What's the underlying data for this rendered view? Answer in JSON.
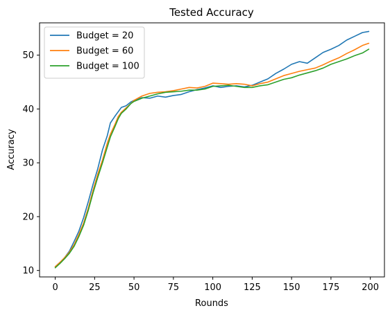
{
  "chart_data": {
    "type": "line",
    "title": "Tested Accuracy",
    "xlabel": "Rounds",
    "ylabel": "Accuracy",
    "xlim": [
      -9.95,
      208.95
    ],
    "ylim": [
      8.8,
      56.0
    ],
    "xticks": [
      0,
      25,
      50,
      75,
      100,
      125,
      150,
      175,
      200
    ],
    "yticks": [
      10,
      20,
      30,
      40,
      50
    ],
    "grid": false,
    "legend_position": "top-left",
    "series": [
      {
        "name": "Budget = 20",
        "color": "#1f77b4",
        "points": [
          [
            0,
            10.7
          ],
          [
            3,
            11.5
          ],
          [
            6,
            12.4
          ],
          [
            9,
            13.6
          ],
          [
            12,
            15.4
          ],
          [
            15,
            17.3
          ],
          [
            18,
            19.8
          ],
          [
            21,
            22.8
          ],
          [
            24,
            26.0
          ],
          [
            27,
            28.9
          ],
          [
            30,
            32.4
          ],
          [
            33,
            35.0
          ],
          [
            35,
            37.4
          ],
          [
            38,
            38.7
          ],
          [
            40,
            39.5
          ],
          [
            42,
            40.3
          ],
          [
            45,
            40.6
          ],
          [
            48,
            41.3
          ],
          [
            50,
            41.6
          ],
          [
            55,
            42.1
          ],
          [
            60,
            42.0
          ],
          [
            65,
            42.4
          ],
          [
            70,
            42.2
          ],
          [
            75,
            42.5
          ],
          [
            80,
            42.7
          ],
          [
            85,
            43.2
          ],
          [
            90,
            43.6
          ],
          [
            95,
            43.9
          ],
          [
            100,
            44.3
          ],
          [
            105,
            44.0
          ],
          [
            110,
            44.2
          ],
          [
            115,
            44.3
          ],
          [
            120,
            44.1
          ],
          [
            125,
            44.4
          ],
          [
            130,
            45.0
          ],
          [
            135,
            45.6
          ],
          [
            140,
            46.6
          ],
          [
            145,
            47.4
          ],
          [
            150,
            48.3
          ],
          [
            155,
            48.8
          ],
          [
            160,
            48.5
          ],
          [
            165,
            49.5
          ],
          [
            170,
            50.5
          ],
          [
            175,
            51.1
          ],
          [
            180,
            51.8
          ],
          [
            185,
            52.8
          ],
          [
            190,
            53.5
          ],
          [
            195,
            54.2
          ],
          [
            199,
            54.4
          ]
        ]
      },
      {
        "name": "Budget = 60",
        "color": "#ff7f0e",
        "points": [
          [
            0,
            10.7
          ],
          [
            3,
            11.5
          ],
          [
            6,
            12.4
          ],
          [
            9,
            13.4
          ],
          [
            12,
            14.8
          ],
          [
            15,
            16.7
          ],
          [
            18,
            18.8
          ],
          [
            21,
            21.6
          ],
          [
            24,
            24.9
          ],
          [
            27,
            27.9
          ],
          [
            30,
            30.5
          ],
          [
            33,
            33.6
          ],
          [
            35,
            35.3
          ],
          [
            38,
            37.2
          ],
          [
            40,
            38.6
          ],
          [
            42,
            39.4
          ],
          [
            45,
            40.2
          ],
          [
            48,
            41.0
          ],
          [
            50,
            41.6
          ],
          [
            55,
            42.4
          ],
          [
            60,
            42.9
          ],
          [
            65,
            43.1
          ],
          [
            70,
            43.2
          ],
          [
            75,
            43.4
          ],
          [
            80,
            43.7
          ],
          [
            85,
            44.0
          ],
          [
            90,
            43.9
          ],
          [
            95,
            44.2
          ],
          [
            100,
            44.8
          ],
          [
            105,
            44.7
          ],
          [
            110,
            44.6
          ],
          [
            115,
            44.7
          ],
          [
            120,
            44.6
          ],
          [
            125,
            44.3
          ],
          [
            130,
            44.7
          ],
          [
            135,
            45.0
          ],
          [
            140,
            45.6
          ],
          [
            145,
            46.2
          ],
          [
            150,
            46.6
          ],
          [
            155,
            47.0
          ],
          [
            160,
            47.3
          ],
          [
            165,
            47.6
          ],
          [
            170,
            48.2
          ],
          [
            175,
            48.9
          ],
          [
            180,
            49.5
          ],
          [
            185,
            50.3
          ],
          [
            190,
            51.0
          ],
          [
            195,
            51.8
          ],
          [
            199,
            52.2
          ]
        ]
      },
      {
        "name": "Budget = 100",
        "color": "#2ca02c",
        "points": [
          [
            0,
            10.5
          ],
          [
            3,
            11.3
          ],
          [
            6,
            12.2
          ],
          [
            9,
            13.2
          ],
          [
            12,
            14.5
          ],
          [
            15,
            16.3
          ],
          [
            18,
            18.4
          ],
          [
            21,
            21.2
          ],
          [
            24,
            24.4
          ],
          [
            27,
            27.3
          ],
          [
            30,
            30.0
          ],
          [
            33,
            32.9
          ],
          [
            35,
            34.8
          ],
          [
            38,
            36.8
          ],
          [
            40,
            38.2
          ],
          [
            42,
            39.2
          ],
          [
            45,
            40.0
          ],
          [
            48,
            41.0
          ],
          [
            50,
            41.4
          ],
          [
            55,
            42.0
          ],
          [
            60,
            42.4
          ],
          [
            65,
            42.8
          ],
          [
            70,
            43.1
          ],
          [
            75,
            43.2
          ],
          [
            80,
            43.3
          ],
          [
            85,
            43.5
          ],
          [
            90,
            43.5
          ],
          [
            95,
            43.7
          ],
          [
            100,
            44.2
          ],
          [
            105,
            44.3
          ],
          [
            110,
            44.4
          ],
          [
            115,
            44.2
          ],
          [
            120,
            44.0
          ],
          [
            125,
            44.0
          ],
          [
            130,
            44.3
          ],
          [
            135,
            44.5
          ],
          [
            140,
            45.0
          ],
          [
            145,
            45.5
          ],
          [
            150,
            45.8
          ],
          [
            155,
            46.3
          ],
          [
            160,
            46.7
          ],
          [
            165,
            47.1
          ],
          [
            170,
            47.6
          ],
          [
            175,
            48.3
          ],
          [
            180,
            48.8
          ],
          [
            185,
            49.3
          ],
          [
            190,
            49.9
          ],
          [
            195,
            50.4
          ],
          [
            199,
            51.1
          ]
        ]
      }
    ]
  }
}
